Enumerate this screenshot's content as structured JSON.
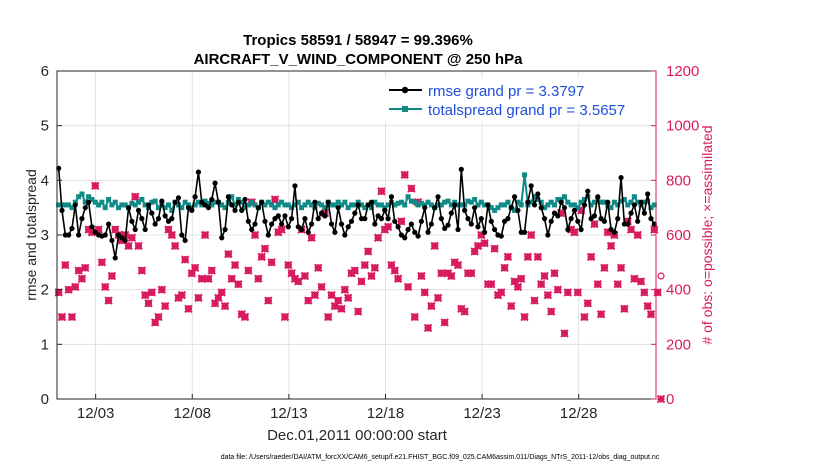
{
  "colors": {
    "rmse": "#000000",
    "totalspread": "#0f8a87",
    "obs": "#d81b60",
    "legend_text": "#1f4fd8",
    "grid": "#dcdcdc"
  },
  "chart_data": {
    "type": "line",
    "title": "Tropics 58591 / 58947 = 99.396%",
    "subtitle": "AIRCRAFT_V_WIND_COMPONENT @ 250 hPa",
    "xlabel": "Dec.01,2011 00:00:00 start",
    "ylabel_left": "rmse and totalspread",
    "ylabel_right": "# of obs: o=possible; ×=assimilated",
    "footnote": "data file: /Users/raeder/DAI/ATM_forcXX/CAM6_setup/f.e21.FHIST_BGC.f09_025.CAM6assim.011/Diags_NTrS_2011-12/obs_diag_output.nc",
    "xlim": [
      1.0,
      32.0
    ],
    "x_ticks": [
      3,
      8,
      13,
      18,
      23,
      28
    ],
    "x_tick_labels": [
      "12/03",
      "12/08",
      "12/13",
      "12/18",
      "12/23",
      "12/28"
    ],
    "ylim_left": [
      0,
      6
    ],
    "y_ticks_left": [
      "0",
      "1",
      "2",
      "3",
      "4",
      "5",
      "6"
    ],
    "ylim_right": [
      0,
      1200
    ],
    "y_ticks_right": [
      "0",
      "200",
      "400",
      "600",
      "800",
      "1000",
      "1200"
    ],
    "legend": {
      "location": "top-right",
      "entries": [
        "rmse grand pr = 3.3797",
        "totalspread grand pr = 3.5657"
      ]
    },
    "series": [
      {
        "name": "rmse",
        "axis": "left",
        "values": [
          4.22,
          3.45,
          3.0,
          3.0,
          3.12,
          3.55,
          3.0,
          3.3,
          3.5,
          3.6,
          3.15,
          3.05,
          3.0,
          2.98,
          3.0,
          3.2,
          2.9,
          2.58,
          3.0,
          2.95,
          2.9,
          3.5,
          3.25,
          3.1,
          3.45,
          3.3,
          3.1,
          3.55,
          3.4,
          3.2,
          3.3,
          3.62,
          3.35,
          3.25,
          3.3,
          3.6,
          3.68,
          3.0,
          2.9,
          3.5,
          3.45,
          3.7,
          4.15,
          3.6,
          3.55,
          3.5,
          3.65,
          3.95,
          3.6,
          2.95,
          3.1,
          3.7,
          3.55,
          3.45,
          3.6,
          3.45,
          3.65,
          3.25,
          3.1,
          3.2,
          3.5,
          3.6,
          3.25,
          3.0,
          3.2,
          3.3,
          3.35,
          3.2,
          3.35,
          3.15,
          3.3,
          3.9,
          3.15,
          3.1,
          3.3,
          3.05,
          3.2,
          3.6,
          3.3,
          3.4,
          3.35,
          3.6,
          3.2,
          3.05,
          3.5,
          3.2,
          3.0,
          3.15,
          3.25,
          3.4,
          3.55,
          3.3,
          3.3,
          3.55,
          3.6,
          3.2,
          3.35,
          3.3,
          3.45,
          3.3,
          3.7,
          3.25,
          3.15,
          3.0,
          2.95,
          3.1,
          3.2,
          3.05,
          2.98,
          3.25,
          3.5,
          3.05,
          3.2,
          3.5,
          3.7,
          3.3,
          3.12,
          3.18,
          3.4,
          3.55,
          3.1,
          4.2,
          3.45,
          3.3,
          3.2,
          3.5,
          3.15,
          3.3,
          3.05,
          3.55,
          3.25,
          3.1,
          3.0,
          2.98,
          3.25,
          3.3,
          3.5,
          3.7,
          3.45,
          3.05,
          3.05,
          3.6,
          3.9,
          3.55,
          3.75,
          3.5,
          3.3,
          3.0,
          3.25,
          3.4,
          3.35,
          3.6,
          3.5,
          3.1,
          3.3,
          3.45,
          3.25,
          3.1,
          3.55,
          3.8,
          3.3,
          3.35,
          3.7,
          3.3,
          3.25,
          3.6,
          3.1,
          3.05,
          3.3,
          4.05,
          3.2,
          3.2,
          3.4,
          3.55,
          3.25,
          3.6,
          3.4,
          3.75,
          3.3,
          3.2
        ]
      },
      {
        "name": "totalspread",
        "axis": "left",
        "values": [
          3.55,
          3.55,
          3.55,
          3.55,
          3.5,
          3.6,
          3.7,
          3.75,
          3.6,
          3.7,
          3.65,
          3.6,
          3.55,
          3.6,
          3.5,
          3.65,
          3.55,
          3.6,
          3.5,
          3.55,
          3.55,
          3.5,
          3.58,
          3.55,
          3.6,
          3.65,
          3.55,
          3.5,
          3.6,
          3.62,
          3.5,
          3.55,
          3.5,
          3.55,
          3.45,
          3.6,
          3.55,
          3.5,
          3.6,
          3.55,
          3.5,
          3.55,
          3.6,
          3.55,
          3.62,
          3.58,
          3.55,
          3.6,
          3.6,
          3.55,
          3.5,
          3.6,
          3.7,
          3.55,
          3.65,
          3.6,
          3.5,
          3.55,
          3.6,
          3.55,
          3.5,
          3.6,
          3.55,
          3.6,
          3.55,
          3.5,
          3.55,
          3.6,
          3.55,
          3.55,
          3.5,
          3.55,
          3.6,
          3.5,
          3.55,
          3.6,
          3.55,
          3.5,
          3.58,
          3.55,
          3.5,
          3.6,
          3.55,
          3.55,
          3.6,
          3.55,
          3.6,
          3.5,
          3.55,
          3.55,
          3.6,
          3.55,
          3.5,
          3.55,
          3.5,
          3.6,
          3.55,
          3.55,
          3.5,
          3.55,
          3.6,
          3.55,
          3.58,
          3.6,
          3.55,
          3.7,
          3.62,
          3.6,
          3.55,
          3.58,
          3.55,
          3.6,
          3.55,
          3.5,
          3.55,
          3.55,
          3.6,
          3.62,
          3.55,
          3.6,
          3.55,
          3.55,
          3.55,
          3.62,
          3.6,
          3.65,
          3.55,
          3.6,
          3.55,
          3.55,
          3.5,
          3.45,
          3.5,
          3.55,
          3.55,
          3.6,
          3.5,
          3.45,
          3.6,
          3.55,
          4.1,
          3.55,
          3.6,
          3.7,
          3.65,
          3.6,
          3.5,
          3.55,
          3.6,
          3.55,
          3.65,
          3.65,
          3.7,
          3.6,
          3.55,
          3.55,
          3.5,
          3.6,
          3.65,
          3.7,
          3.55,
          3.6,
          3.65,
          3.6,
          3.6,
          3.55,
          3.5,
          3.6,
          3.55,
          3.62,
          3.65,
          3.55,
          3.6,
          3.7,
          3.6,
          3.55,
          3.6,
          3.62,
          3.5,
          3.55
        ]
      },
      {
        "name": "obs_possible",
        "axis": "right",
        "values": [
          390,
          300,
          490,
          400,
          300,
          410,
          470,
          440,
          480,
          620,
          610,
          780,
          620,
          500,
          410,
          360,
          450,
          620,
          600,
          580,
          600,
          560,
          590,
          740,
          560,
          470,
          380,
          350,
          390,
          280,
          300,
          400,
          340,
          620,
          600,
          560,
          370,
          380,
          510,
          330,
          460,
          480,
          370,
          440,
          600,
          440,
          470,
          350,
          370,
          390,
          340,
          530,
          440,
          490,
          420,
          310,
          300,
          470,
          720,
          600,
          440,
          520,
          550,
          360,
          500,
          730,
          610,
          620,
          300,
          490,
          460,
          440,
          430,
          620,
          450,
          360,
          590,
          380,
          480,
          410,
          680,
          300,
          380,
          340,
          360,
          330,
          400,
          370,
          460,
          470,
          320,
          430,
          490,
          540,
          450,
          480,
          590,
          760,
          620,
          630,
          490,
          470,
          440,
          650,
          820,
          410,
          770,
          300,
          720,
          450,
          390,
          260,
          340,
          560,
          370,
          460,
          280,
          460,
          450,
          500,
          490,
          330,
          320,
          460,
          460,
          540,
          560,
          600,
          570,
          420,
          420,
          550,
          380,
          390,
          480,
          520,
          340,
          430,
          410,
          440,
          300,
          520,
          600,
          360,
          520,
          420,
          450,
          380,
          320,
          460,
          400,
          680,
          240,
          390,
          620,
          610,
          390,
          690,
          300,
          350,
          520,
          640,
          420,
          310,
          480,
          610,
          560,
          600,
          420,
          480,
          330,
          650,
          620,
          440,
          600,
          430,
          390,
          340,
          310,
          620,
          390,
          450
        ]
      },
      {
        "name": "obs_assimilated",
        "axis": "right",
        "values": [
          390,
          300,
          490,
          400,
          300,
          410,
          470,
          440,
          480,
          620,
          610,
          780,
          620,
          500,
          410,
          360,
          450,
          620,
          600,
          580,
          600,
          560,
          590,
          740,
          560,
          470,
          380,
          350,
          390,
          280,
          300,
          400,
          340,
          620,
          600,
          560,
          370,
          380,
          510,
          330,
          460,
          480,
          370,
          440,
          600,
          440,
          470,
          350,
          370,
          390,
          340,
          530,
          440,
          490,
          420,
          310,
          300,
          470,
          720,
          600,
          440,
          520,
          550,
          360,
          500,
          730,
          610,
          620,
          300,
          490,
          460,
          440,
          430,
          620,
          450,
          360,
          590,
          380,
          480,
          410,
          680,
          300,
          380,
          340,
          360,
          330,
          400,
          370,
          460,
          470,
          320,
          430,
          490,
          540,
          450,
          480,
          590,
          760,
          620,
          630,
          490,
          470,
          440,
          650,
          820,
          410,
          770,
          300,
          720,
          450,
          390,
          260,
          340,
          560,
          370,
          460,
          280,
          460,
          450,
          500,
          490,
          330,
          320,
          460,
          460,
          540,
          560,
          600,
          570,
          420,
          420,
          550,
          380,
          390,
          480,
          520,
          340,
          430,
          410,
          440,
          300,
          520,
          600,
          360,
          520,
          420,
          450,
          380,
          320,
          460,
          400,
          680,
          240,
          390,
          620,
          610,
          390,
          690,
          300,
          350,
          520,
          640,
          420,
          310,
          480,
          610,
          560,
          600,
          420,
          480,
          330,
          650,
          620,
          440,
          600,
          430,
          390,
          340,
          310,
          620,
          390,
          0
        ]
      }
    ]
  }
}
